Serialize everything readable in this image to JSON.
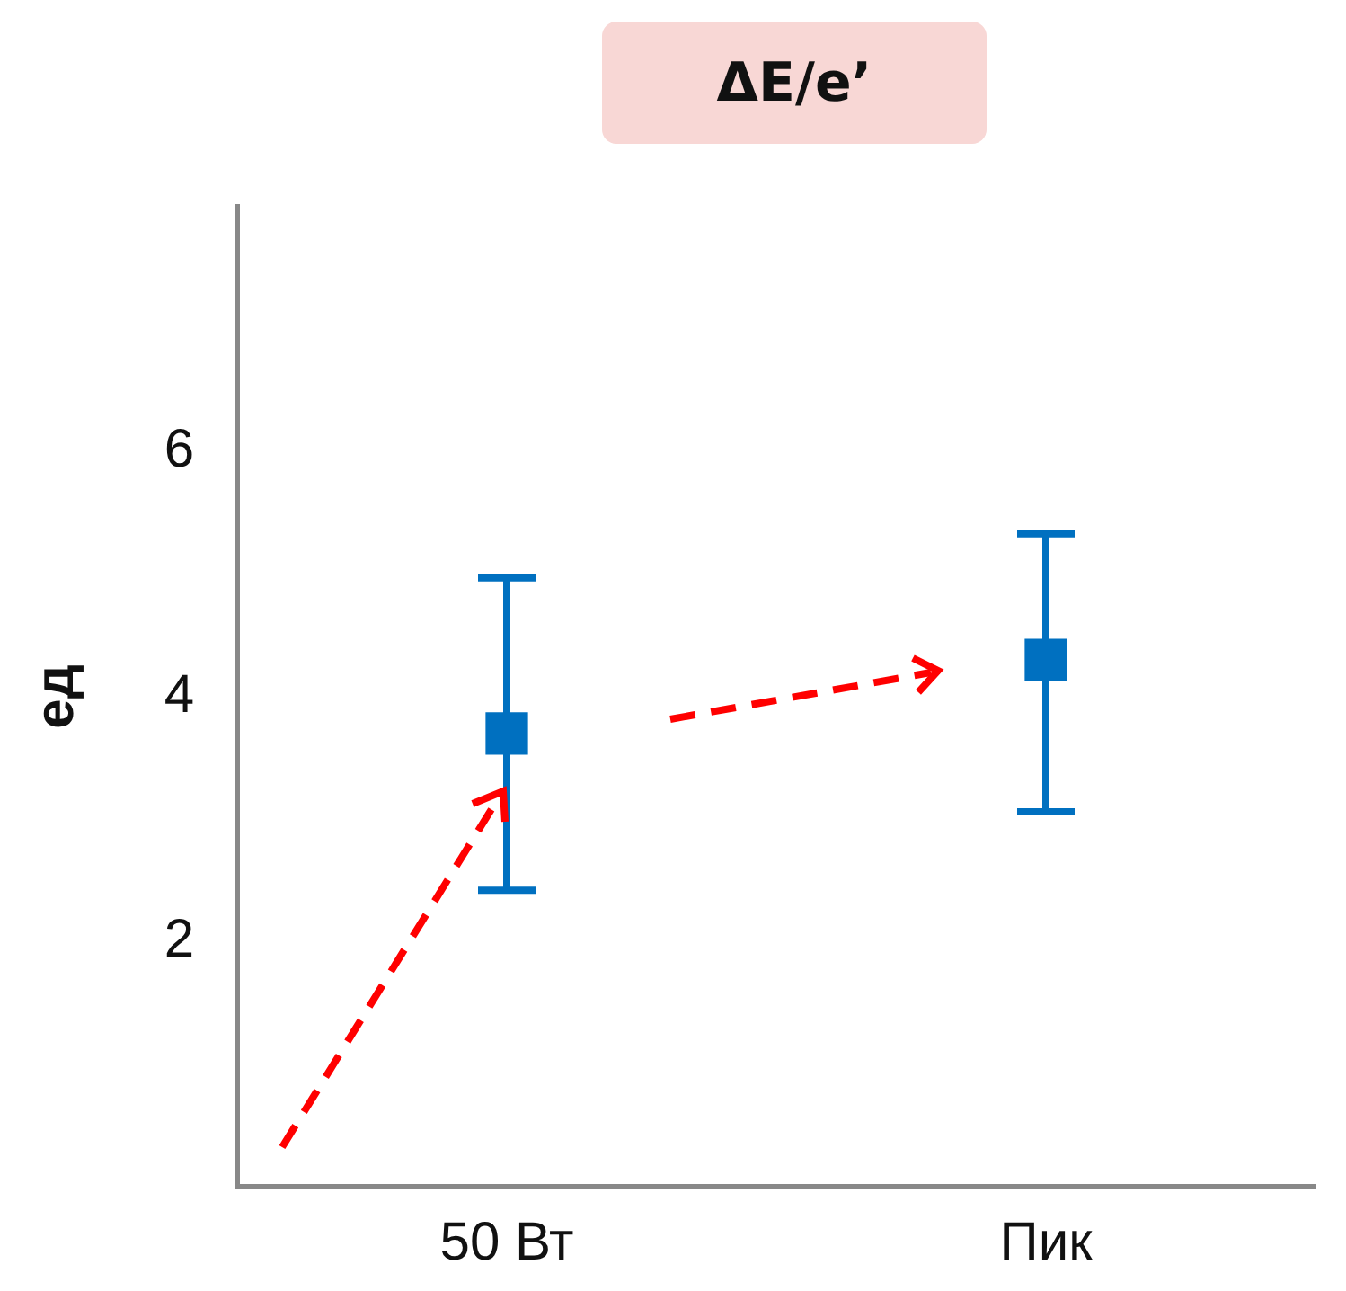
{
  "chart_data": {
    "type": "scatter",
    "title": "ΔE/e’",
    "ylabel": "ед",
    "categories": [
      "50 Вт",
      "Пик"
    ],
    "series": [
      {
        "color": "#0070c0",
        "values": [
          3.7,
          4.3
        ],
        "errors": [
          [
            2.42,
            4.97
          ],
          [
            3.06,
            5.33
          ]
        ]
      }
    ],
    "ylim": [
      0,
      8
    ],
    "yticks": [
      2,
      4,
      6
    ],
    "grid": false,
    "legend": false,
    "marker": "square"
  }
}
